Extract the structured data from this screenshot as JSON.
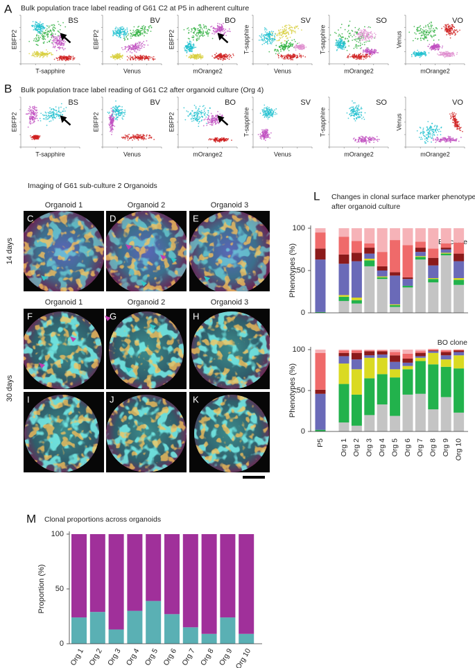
{
  "panel_a": {
    "label": "A",
    "title": "Bulk population trace label reading of G61 C2 at P5 in adherent culture",
    "plots": [
      {
        "name": "BS",
        "xlabel": "T-sapphire",
        "ylabel": "EBFP2"
      },
      {
        "name": "BV",
        "xlabel": "Venus",
        "ylabel": "EBFP2"
      },
      {
        "name": "BO",
        "xlabel": "mOrange2",
        "ylabel": "EBFP2"
      },
      {
        "name": "SV",
        "xlabel": "Venus",
        "ylabel": "T-sapphire"
      },
      {
        "name": "SO",
        "xlabel": "mOrange2",
        "ylabel": "T-sapphire"
      },
      {
        "name": "VO",
        "xlabel": "mOrange2",
        "ylabel": "Venus"
      }
    ]
  },
  "panel_b": {
    "label": "B",
    "title": "Bulk population trace label reading of G61 C2 after organoid culture (Org 4)",
    "plots": [
      {
        "name": "BS",
        "xlabel": "T-sapphire",
        "ylabel": "EBFP2"
      },
      {
        "name": "BV",
        "xlabel": "Venus",
        "ylabel": "EBFP2"
      },
      {
        "name": "BO",
        "xlabel": "mOrange2",
        "ylabel": "EBFP2"
      },
      {
        "name": "SV",
        "xlabel": "Venus",
        "ylabel": "T-sapphire"
      },
      {
        "name": "SO",
        "xlabel": "mOrange2",
        "ylabel": "T-sapphire"
      },
      {
        "name": "VO",
        "xlabel": "mOrange2",
        "ylabel": "Venus"
      }
    ]
  },
  "imaging": {
    "title": "Imaging of G61 sub-culture 2 Organoids",
    "headers_14": [
      "Organoid 1",
      "Organoid 2",
      "Organoid 3"
    ],
    "headers_30": [
      "Organoid 1",
      "Organoid 2",
      "Organoid 3"
    ],
    "rows": [
      "14 days",
      "30 days"
    ],
    "labels": [
      "C",
      "D",
      "E",
      "F",
      "G",
      "H",
      "I",
      "J",
      "K"
    ]
  },
  "panel_l": {
    "label": "L",
    "title": [
      "Changes in clonal surface marker phenotypes",
      "after organoid culture"
    ]
  },
  "panel_m": {
    "label": "M"
  },
  "chart_data": [
    {
      "type": "bar",
      "stacked": true,
      "title": "BS clone",
      "ylabel": "Phenotypes (%)",
      "ylim": [
        0,
        100
      ],
      "yticks": [
        0,
        50,
        100
      ],
      "series": [
        {
          "color": "#c4c4c4",
          "values": [
            0,
            14,
            11,
            55,
            40,
            7,
            30,
            63,
            36,
            68,
            33
          ]
        },
        {
          "color": "#22b24c",
          "values": [
            1,
            5,
            4,
            7,
            2,
            2,
            2,
            3,
            4,
            2,
            6
          ]
        },
        {
          "color": "#dada22",
          "values": [
            0,
            2,
            3,
            2,
            1,
            1,
            0,
            1,
            1,
            1,
            2
          ]
        },
        {
          "color": "#6a6ab8",
          "values": [
            62,
            37,
            43,
            6,
            7,
            34,
            8,
            5,
            15,
            4,
            20
          ]
        },
        {
          "color": "#8b1a1a",
          "values": [
            13,
            11,
            10,
            7,
            5,
            4,
            2,
            5,
            9,
            2,
            9
          ]
        },
        {
          "color": "#ef6a6a",
          "values": [
            19,
            21,
            14,
            5,
            17,
            38,
            38,
            7,
            11,
            5,
            13
          ]
        },
        {
          "color": "#f6b3b8",
          "values": [
            5,
            10,
            15,
            18,
            28,
            14,
            20,
            16,
            24,
            18,
            17
          ]
        }
      ]
    },
    {
      "type": "bar",
      "stacked": true,
      "title": "BO clone",
      "ylabel": "Phenotypes (%)",
      "categories": [
        "P5",
        "Org 1",
        "Org 2",
        "Org 3",
        "Org 4",
        "Org 5",
        "Org 6",
        "Org 7",
        "Org 8",
        "Org 9",
        "Org 10"
      ],
      "ylim": [
        0,
        100
      ],
      "yticks": [
        0,
        50,
        100
      ],
      "series": [
        {
          "color": "#c4c4c4",
          "values": [
            0,
            11,
            7,
            20,
            33,
            19,
            45,
            46,
            27,
            42,
            23
          ]
        },
        {
          "color": "#22b24c",
          "values": [
            2,
            47,
            38,
            45,
            37,
            47,
            31,
            40,
            55,
            37,
            54
          ]
        },
        {
          "color": "#dada22",
          "values": [
            0,
            25,
            31,
            25,
            20,
            10,
            4,
            4,
            14,
            9,
            16
          ]
        },
        {
          "color": "#6a6ab8",
          "values": [
            44,
            9,
            12,
            3,
            4,
            9,
            4,
            2,
            2,
            5,
            4
          ]
        },
        {
          "color": "#8b1a1a",
          "values": [
            5,
            4,
            8,
            5,
            4,
            8,
            5,
            4,
            1,
            4,
            2
          ]
        },
        {
          "color": "#ef6a6a",
          "values": [
            45,
            3,
            3,
            1,
            1,
            4,
            6,
            2,
            1,
            2,
            1
          ]
        },
        {
          "color": "#f6b3b8",
          "values": [
            4,
            1,
            1,
            1,
            1,
            3,
            5,
            2,
            1,
            1,
            0
          ]
        }
      ]
    },
    {
      "type": "bar",
      "stacked": true,
      "title": "Clonal proportions across organoids",
      "ylabel": "Proportion (%)",
      "categories": [
        "Org 1",
        "Org 2",
        "Org 3",
        "Org 4",
        "Org 5",
        "Org 6",
        "Org 7",
        "Org 8",
        "Org 9",
        "Org 10"
      ],
      "ylim": [
        0,
        100
      ],
      "yticks": [
        0,
        50,
        100
      ],
      "series": [
        {
          "color": "#5ab0b4",
          "values": [
            24,
            29,
            13,
            30,
            39,
            27,
            15,
            9,
            24,
            9
          ]
        },
        {
          "color": "#a0309a",
          "values": [
            76,
            71,
            87,
            70,
            61,
            73,
            85,
            91,
            76,
            91
          ]
        }
      ]
    }
  ]
}
